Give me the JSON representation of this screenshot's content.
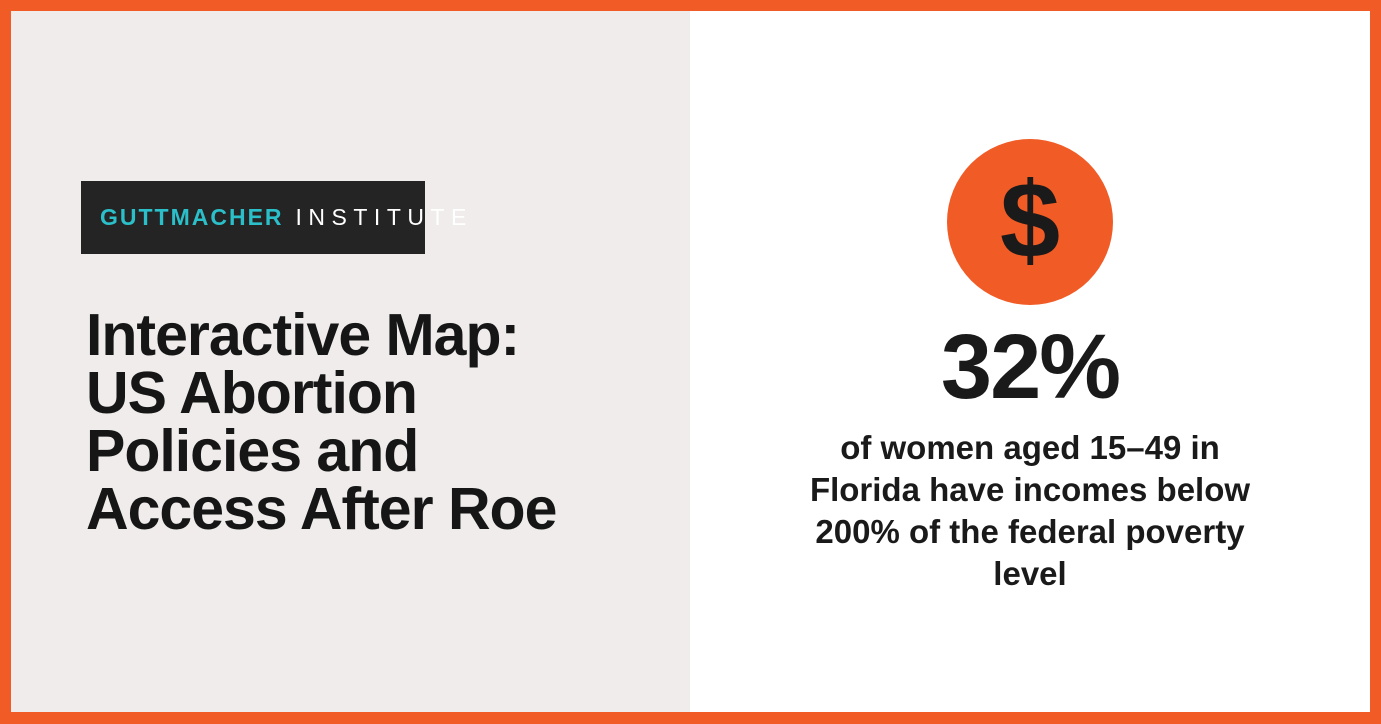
{
  "page": {
    "border_color": "#F15B25",
    "left_background": "#EFECEB",
    "right_background": "#FFFFFF"
  },
  "brand": {
    "logo_primary": "GUTTMACHER",
    "logo_secondary": "INSTITUTE",
    "logo_background": "#242424",
    "logo_primary_color": "#2BBFC9",
    "logo_secondary_color": "#FFFFFF"
  },
  "left_panel": {
    "title": "Interactive Map: US Abortion Policies and Access After Roe",
    "title_lines": [
      "Interactive Map:",
      "US Abortion",
      "Policies and",
      "Access After Roe"
    ]
  },
  "right_panel": {
    "icon": "dollar-sign-icon",
    "icon_glyph": "$",
    "icon_background": "#F15B25",
    "stat_value": "32%",
    "stat_description": "of women aged 15–49 in Florida have incomes below 200% of the federal poverty level",
    "stat_description_lines": [
      "of women aged 15–49 in",
      "Florida have incomes below",
      "200% of the federal poverty",
      "level"
    ]
  }
}
